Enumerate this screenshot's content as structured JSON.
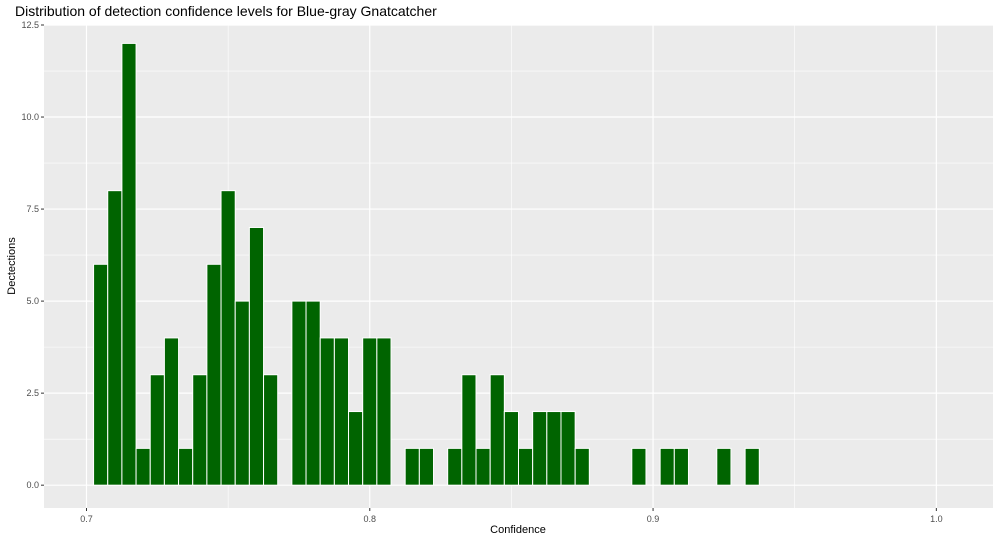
{
  "chart_data": {
    "type": "bar",
    "title": "Distribution of detection confidence levels for Blue-gray Gnatcatcher",
    "xlabel": "Confidence",
    "ylabel": "Dectections",
    "xlim": [
      0.685,
      1.02
    ],
    "ylim": [
      -0.62,
      12.5
    ],
    "x_ticks": [
      0.7,
      0.8,
      0.9,
      1.0
    ],
    "x_tick_labels": [
      "0.7",
      "0.8",
      "0.9",
      "1.0"
    ],
    "y_ticks": [
      0,
      2.5,
      5,
      7.5,
      10,
      12.5
    ],
    "y_tick_labels": [
      "0.0",
      "2.5",
      "5.0",
      "7.5",
      "10.0",
      "12.5"
    ],
    "bin_width": 0.005,
    "x": [
      0.705,
      0.71,
      0.715,
      0.72,
      0.725,
      0.73,
      0.735,
      0.74,
      0.745,
      0.75,
      0.755,
      0.76,
      0.765,
      0.775,
      0.78,
      0.785,
      0.79,
      0.795,
      0.8,
      0.805,
      0.815,
      0.82,
      0.83,
      0.835,
      0.84,
      0.845,
      0.85,
      0.855,
      0.86,
      0.865,
      0.87,
      0.875,
      0.895,
      0.905,
      0.91,
      0.925,
      0.935
    ],
    "values": [
      6,
      8,
      12,
      1,
      3,
      4,
      1,
      3,
      6,
      8,
      5,
      7,
      3,
      5,
      5,
      4,
      4,
      2,
      4,
      4,
      1,
      1,
      1,
      3,
      1,
      3,
      2,
      1,
      2,
      2,
      2,
      1,
      1,
      1,
      1,
      1,
      1
    ],
    "colors": {
      "bar_fill": "#006400",
      "bar_stroke": "#ffffff",
      "panel": "#ebebeb",
      "grid": "#ffffff"
    },
    "grid": true,
    "legend": "none"
  }
}
